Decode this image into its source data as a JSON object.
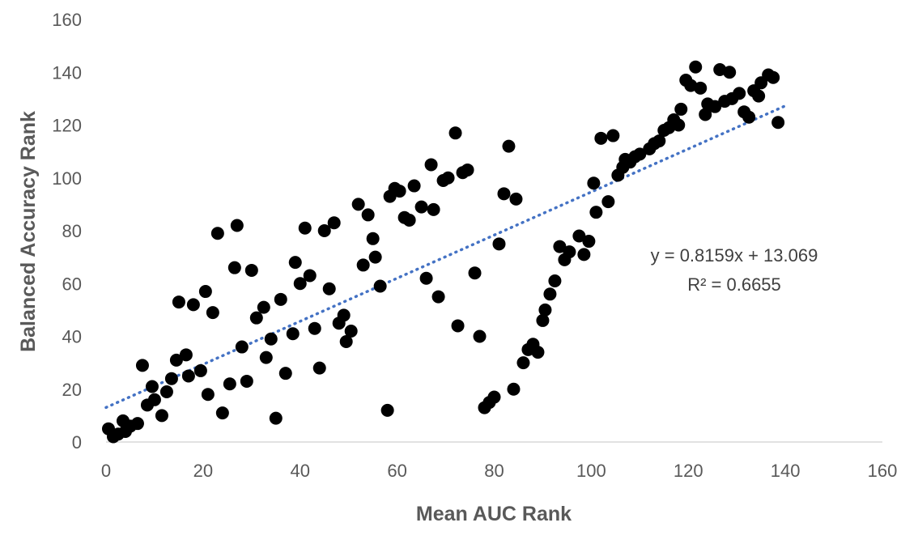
{
  "chart_data": {
    "type": "scatter",
    "xlabel": "Mean AUC Rank",
    "ylabel": "Balanced Accuracy Rank",
    "xlim": [
      0,
      160
    ],
    "ylim": [
      0,
      160
    ],
    "x_ticks": [
      0,
      20,
      40,
      60,
      80,
      100,
      120,
      140,
      160
    ],
    "y_ticks": [
      0,
      20,
      40,
      60,
      80,
      100,
      120,
      140,
      160
    ],
    "grid": false,
    "legend": "none",
    "marker_color": "#000000",
    "trendline": {
      "type": "linear",
      "slope": 0.8159,
      "intercept": 13.069,
      "x_range": [
        0,
        140
      ],
      "color": "#4472C4",
      "style": "dotted",
      "equation_label": "y = 0.8159x + 13.069",
      "r2_label": "R² = 0.6655"
    },
    "points": [
      [
        0.5,
        5
      ],
      [
        1.5,
        2
      ],
      [
        2.5,
        3
      ],
      [
        3.5,
        8
      ],
      [
        4,
        4
      ],
      [
        5,
        6
      ],
      [
        6.5,
        7
      ],
      [
        7.5,
        29
      ],
      [
        8.5,
        14
      ],
      [
        9.5,
        21
      ],
      [
        10,
        16
      ],
      [
        11.5,
        10
      ],
      [
        12.5,
        19
      ],
      [
        13.5,
        24
      ],
      [
        14.5,
        31
      ],
      [
        15,
        53
      ],
      [
        16.5,
        33
      ],
      [
        17,
        25
      ],
      [
        18,
        52
      ],
      [
        19.5,
        27
      ],
      [
        20.5,
        57
      ],
      [
        21,
        18
      ],
      [
        22,
        49
      ],
      [
        23,
        79
      ],
      [
        24,
        11
      ],
      [
        25.5,
        22
      ],
      [
        26.5,
        66
      ],
      [
        27,
        82
      ],
      [
        28,
        36
      ],
      [
        29,
        23
      ],
      [
        30,
        65
      ],
      [
        31,
        47
      ],
      [
        32.5,
        51
      ],
      [
        33,
        32
      ],
      [
        34,
        39
      ],
      [
        35,
        9
      ],
      [
        36,
        54
      ],
      [
        37,
        26
      ],
      [
        38.5,
        41
      ],
      [
        39,
        68
      ],
      [
        40,
        60
      ],
      [
        41,
        81
      ],
      [
        42,
        63
      ],
      [
        43,
        43
      ],
      [
        44,
        28
      ],
      [
        45,
        80
      ],
      [
        46,
        58
      ],
      [
        47,
        83
      ],
      [
        48,
        45
      ],
      [
        49,
        48
      ],
      [
        49.5,
        38
      ],
      [
        50.5,
        42
      ],
      [
        52,
        90
      ],
      [
        53,
        67
      ],
      [
        54,
        86
      ],
      [
        55,
        77
      ],
      [
        55.5,
        70
      ],
      [
        56.5,
        59
      ],
      [
        58,
        12
      ],
      [
        58.5,
        93
      ],
      [
        59.5,
        96
      ],
      [
        60.5,
        95
      ],
      [
        61.5,
        85
      ],
      [
        62.5,
        84
      ],
      [
        63.5,
        97
      ],
      [
        65,
        89
      ],
      [
        66,
        62
      ],
      [
        67,
        105
      ],
      [
        67.5,
        88
      ],
      [
        68.5,
        55
      ],
      [
        69.5,
        99
      ],
      [
        70.5,
        100
      ],
      [
        72,
        117
      ],
      [
        72.5,
        44
      ],
      [
        73.5,
        102
      ],
      [
        74.5,
        103
      ],
      [
        76,
        64
      ],
      [
        77,
        40
      ],
      [
        78,
        13
      ],
      [
        79,
        15
      ],
      [
        80,
        17
      ],
      [
        81,
        75
      ],
      [
        82,
        94
      ],
      [
        83,
        112
      ],
      [
        84,
        20
      ],
      [
        84.5,
        92
      ],
      [
        86,
        30
      ],
      [
        87,
        35
      ],
      [
        88,
        37
      ],
      [
        89,
        34
      ],
      [
        90,
        46
      ],
      [
        90.5,
        50
      ],
      [
        91.5,
        56
      ],
      [
        92.5,
        61
      ],
      [
        93.5,
        74
      ],
      [
        94.5,
        69
      ],
      [
        95.5,
        72
      ],
      [
        97.5,
        78
      ],
      [
        98.5,
        71
      ],
      [
        99.5,
        76
      ],
      [
        100.5,
        98
      ],
      [
        101,
        87
      ],
      [
        102,
        115
      ],
      [
        103.5,
        91
      ],
      [
        104.5,
        116
      ],
      [
        105.5,
        101
      ],
      [
        106.5,
        104
      ],
      [
        107,
        107
      ],
      [
        108,
        106
      ],
      [
        109,
        108
      ],
      [
        110,
        109
      ],
      [
        112,
        111
      ],
      [
        113,
        113
      ],
      [
        114,
        114
      ],
      [
        115,
        118
      ],
      [
        116,
        119
      ],
      [
        117,
        122
      ],
      [
        118,
        120
      ],
      [
        118.5,
        126
      ],
      [
        119.5,
        137
      ],
      [
        120.5,
        135
      ],
      [
        121.5,
        142
      ],
      [
        122.5,
        134
      ],
      [
        123.5,
        124
      ],
      [
        124,
        128
      ],
      [
        125.5,
        127
      ],
      [
        126.5,
        141
      ],
      [
        127.5,
        129
      ],
      [
        128.5,
        140
      ],
      [
        129,
        130
      ],
      [
        130.5,
        132
      ],
      [
        131.5,
        125
      ],
      [
        132.5,
        123
      ],
      [
        133.5,
        133
      ],
      [
        134.5,
        131
      ],
      [
        135,
        136
      ],
      [
        136.5,
        139
      ],
      [
        137.5,
        138
      ],
      [
        138.5,
        121
      ]
    ]
  }
}
